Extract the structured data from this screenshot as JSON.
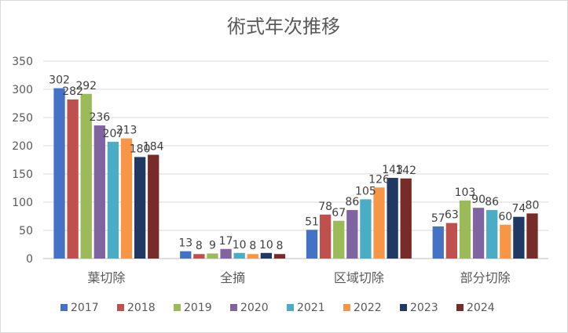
{
  "chart_data": {
    "type": "bar",
    "title": "術式年次推移",
    "xlabel": "",
    "ylabel": "",
    "categories": [
      "葉切除",
      "全摘",
      "区域切除",
      "部分切除"
    ],
    "ylim": [
      0,
      350
    ],
    "yticks": [
      0,
      50,
      100,
      150,
      200,
      250,
      300,
      350
    ],
    "grid": true,
    "legend_position": "bottom",
    "series": [
      {
        "name": "2017",
        "color": "#4472c4",
        "values": [
          302,
          13,
          51,
          57
        ]
      },
      {
        "name": "2018",
        "color": "#c0504d",
        "values": [
          282,
          8,
          78,
          63
        ]
      },
      {
        "name": "2019",
        "color": "#9bbb59",
        "values": [
          292,
          9,
          67,
          103
        ]
      },
      {
        "name": "2020",
        "color": "#8064a2",
        "values": [
          236,
          17,
          86,
          90
        ]
      },
      {
        "name": "2021",
        "color": "#4bacc6",
        "values": [
          207,
          10,
          105,
          86
        ]
      },
      {
        "name": "2022",
        "color": "#f79646",
        "values": [
          213,
          8,
          126,
          60
        ]
      },
      {
        "name": "2023",
        "color": "#1f3864",
        "values": [
          180,
          10,
          143,
          74
        ]
      },
      {
        "name": "2024",
        "color": "#772c2a",
        "values": [
          184,
          8,
          142,
          80
        ]
      }
    ]
  }
}
